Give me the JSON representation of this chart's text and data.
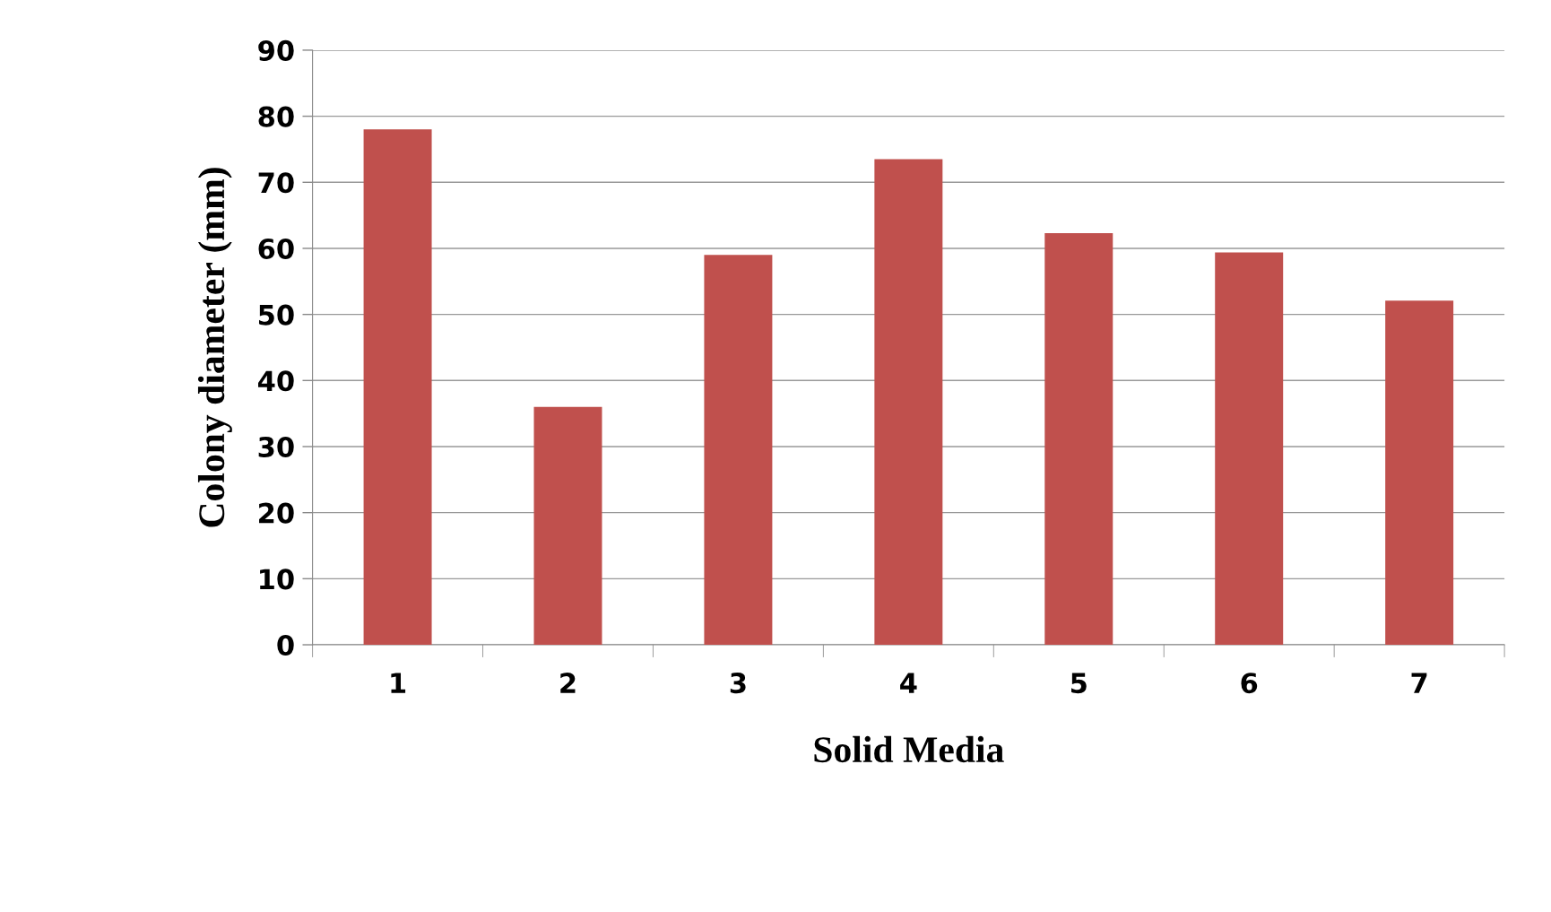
{
  "chart_data": {
    "type": "bar",
    "xlabel": "Solid Media",
    "ylabel": "Colony diameter (mm)",
    "categories": [
      "1",
      "2",
      "3",
      "4",
      "5",
      "6",
      "7"
    ],
    "values": [
      78,
      36,
      59,
      73.5,
      62.3,
      59.4,
      52.1
    ],
    "color": "#c0504d",
    "ylim": [
      0,
      90
    ],
    "yticks": [
      0,
      10,
      20,
      30,
      40,
      50,
      60,
      70,
      80,
      90
    ],
    "grid": "y",
    "legend": false
  }
}
